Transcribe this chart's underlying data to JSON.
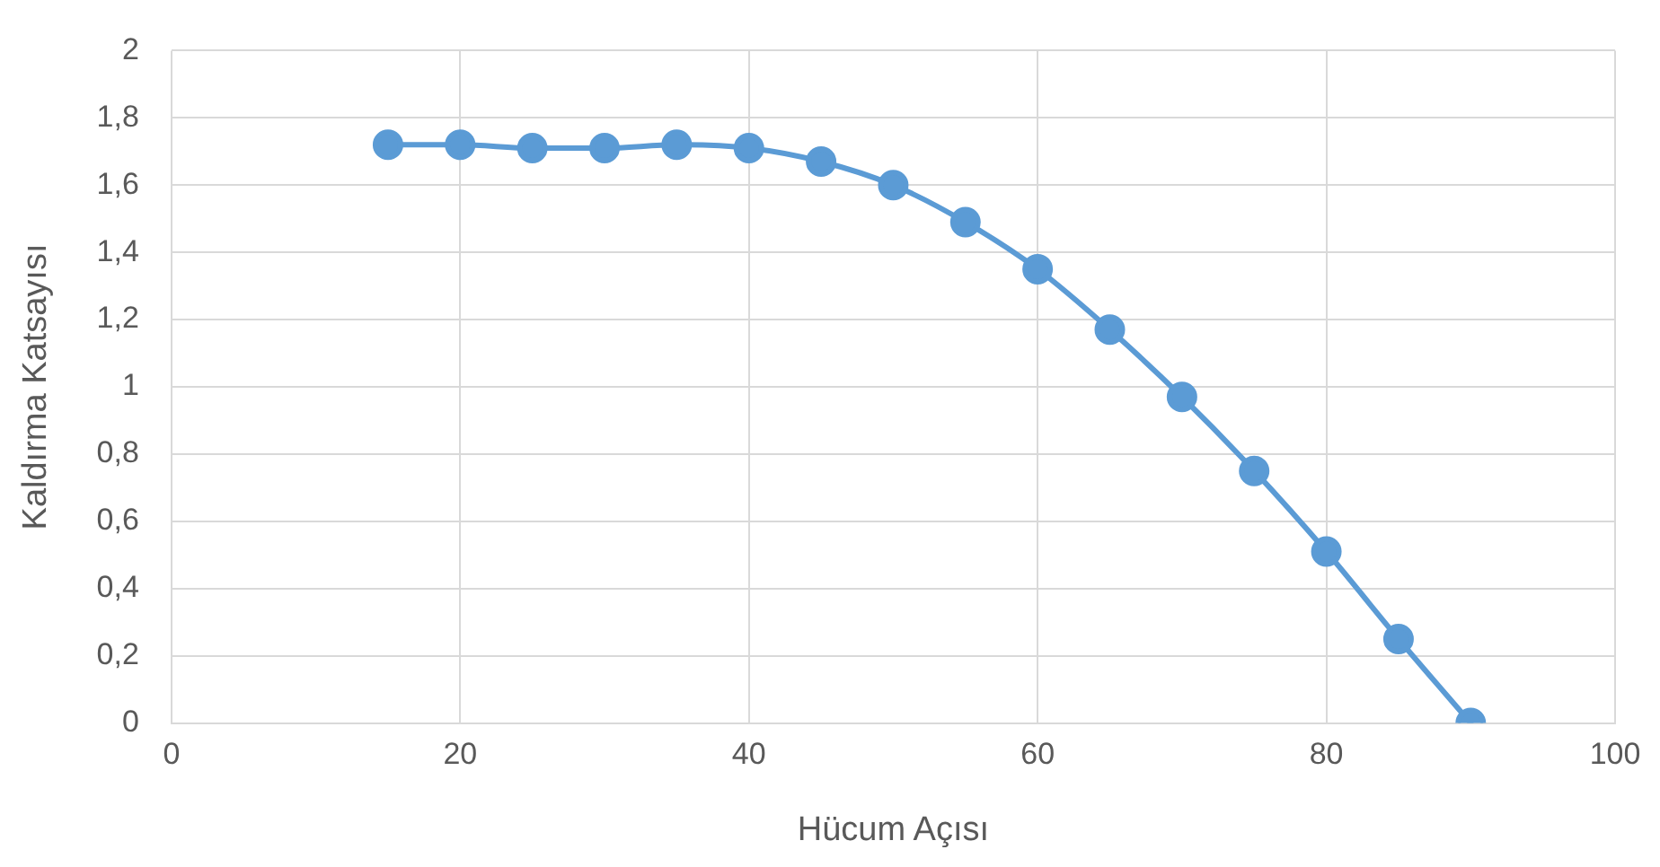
{
  "chart_data": {
    "type": "line",
    "xlabel": "Hücum Açısı",
    "ylabel": "Kaldırma Katsayısı",
    "x": [
      15,
      20,
      25,
      30,
      35,
      40,
      45,
      50,
      55,
      60,
      65,
      70,
      75,
      80,
      85,
      90
    ],
    "series": [
      {
        "color": "#5b9bd5",
        "values": [
          1.72,
          1.72,
          1.71,
          1.71,
          1.72,
          1.71,
          1.67,
          1.6,
          1.49,
          1.35,
          1.17,
          0.97,
          0.75,
          0.51,
          0.25,
          0
        ]
      }
    ],
    "xlim": [
      0,
      100
    ],
    "xticks": [
      0,
      20,
      40,
      60,
      80,
      100
    ],
    "ylim": [
      0,
      2
    ],
    "yticks": [
      0,
      {
        "value": 0.2,
        "label": "0,2"
      },
      {
        "value": 0.4,
        "label": "0,4"
      },
      {
        "value": 0.6,
        "label": "0,6"
      },
      {
        "value": 0.8,
        "label": "0,8"
      },
      1,
      {
        "value": 1.2,
        "label": "1,2"
      },
      {
        "value": 1.4,
        "label": "1,4"
      },
      {
        "value": 1.6,
        "label": "1,6"
      },
      {
        "value": 1.8,
        "label": "1,8"
      },
      2
    ],
    "grid": true,
    "marker": "circle",
    "line_style": "solid",
    "legend": false
  }
}
